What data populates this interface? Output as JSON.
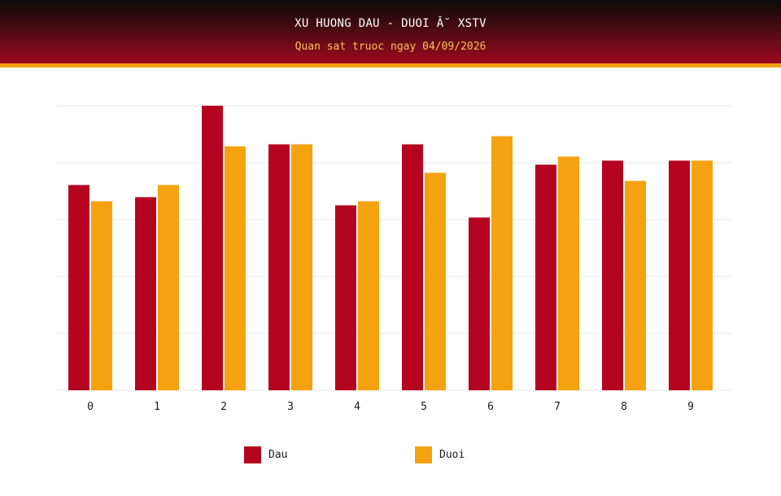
{
  "header": {
    "title": "XU HUONG DAU - DUOI Â˘ XSTV",
    "subtitle": "Quan sat truoc ngay 04/09/2026"
  },
  "colors": {
    "dau": "#b5041f",
    "duoi": "#f4a20f",
    "header_accent": "#f4a20f",
    "grid": "#e8e8e8"
  },
  "legend": {
    "dau_label": "Dau",
    "duoi_label": "Duoi"
  },
  "chart_data": {
    "type": "bar",
    "title": "XU HUONG DAU - DUOI Â˘ XSTV",
    "subtitle": "Quan sat truoc ngay 04/09/2026",
    "xlabel": "",
    "ylabel": "",
    "categories": [
      "0",
      "1",
      "2",
      "3",
      "4",
      "5",
      "6",
      "7",
      "8",
      "9"
    ],
    "series": [
      {
        "name": "Dau",
        "values": [
          10.1,
          9.5,
          14.0,
          12.1,
          9.1,
          12.1,
          8.5,
          11.1,
          11.3,
          11.3
        ]
      },
      {
        "name": "Duoi",
        "values": [
          9.3,
          10.1,
          12.0,
          12.1,
          9.3,
          10.7,
          12.5,
          11.5,
          10.3,
          11.3
        ]
      }
    ],
    "ylim": [
      0,
      14
    ],
    "y_ticks_shown": false,
    "grid": true,
    "grid_lines": 5,
    "legend_position": "bottom"
  }
}
